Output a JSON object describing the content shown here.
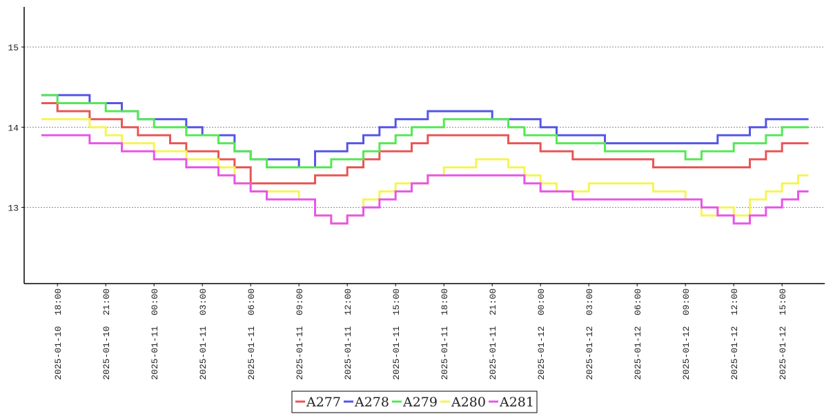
{
  "chart_data": {
    "type": "line",
    "step": true,
    "x": [
      "2025-01-10 17:00",
      "2025-01-10 18:00",
      "2025-01-10 19:00",
      "2025-01-10 20:00",
      "2025-01-10 21:00",
      "2025-01-10 22:00",
      "2025-01-10 23:00",
      "2025-01-11 00:00",
      "2025-01-11 01:00",
      "2025-01-11 02:00",
      "2025-01-11 03:00",
      "2025-01-11 04:00",
      "2025-01-11 05:00",
      "2025-01-11 06:00",
      "2025-01-11 07:00",
      "2025-01-11 08:00",
      "2025-01-11 09:00",
      "2025-01-11 10:00",
      "2025-01-11 11:00",
      "2025-01-11 12:00",
      "2025-01-11 13:00",
      "2025-01-11 14:00",
      "2025-01-11 15:00",
      "2025-01-11 16:00",
      "2025-01-11 17:00",
      "2025-01-11 18:00",
      "2025-01-11 19:00",
      "2025-01-11 20:00",
      "2025-01-11 21:00",
      "2025-01-11 22:00",
      "2025-01-11 23:00",
      "2025-01-12 00:00",
      "2025-01-12 01:00",
      "2025-01-12 02:00",
      "2025-01-12 03:00",
      "2025-01-12 04:00",
      "2025-01-12 05:00",
      "2025-01-12 06:00",
      "2025-01-12 07:00",
      "2025-01-12 08:00",
      "2025-01-12 09:00",
      "2025-01-12 10:00",
      "2025-01-12 11:00",
      "2025-01-12 12:00",
      "2025-01-12 13:00",
      "2025-01-12 14:00",
      "2025-01-12 15:00",
      "2025-01-12 16:00"
    ],
    "series": [
      {
        "name": "A277",
        "color": "#e85555",
        "values": [
          14.3,
          14.2,
          14.2,
          14.1,
          14.1,
          14.0,
          13.9,
          13.9,
          13.8,
          13.7,
          13.7,
          13.6,
          13.5,
          13.3,
          13.3,
          13.3,
          13.3,
          13.4,
          13.4,
          13.5,
          13.6,
          13.7,
          13.7,
          13.8,
          13.9,
          13.9,
          13.9,
          13.9,
          13.9,
          13.8,
          13.8,
          13.7,
          13.7,
          13.6,
          13.6,
          13.6,
          13.6,
          13.6,
          13.5,
          13.5,
          13.5,
          13.5,
          13.5,
          13.5,
          13.6,
          13.7,
          13.8,
          13.8
        ]
      },
      {
        "name": "A278",
        "color": "#5555e8",
        "values": [
          14.4,
          14.4,
          14.4,
          14.3,
          14.3,
          14.2,
          14.1,
          14.1,
          14.1,
          14.0,
          13.9,
          13.9,
          13.7,
          13.6,
          13.6,
          13.6,
          13.5,
          13.7,
          13.7,
          13.8,
          13.9,
          14.0,
          14.1,
          14.1,
          14.2,
          14.2,
          14.2,
          14.2,
          14.1,
          14.1,
          14.1,
          14.0,
          13.9,
          13.9,
          13.9,
          13.8,
          13.8,
          13.8,
          13.8,
          13.8,
          13.8,
          13.8,
          13.9,
          13.9,
          14.0,
          14.1,
          14.1,
          14.1
        ]
      },
      {
        "name": "A279",
        "color": "#55e855",
        "values": [
          14.4,
          14.3,
          14.3,
          14.3,
          14.2,
          14.2,
          14.1,
          14.0,
          14.0,
          13.9,
          13.9,
          13.8,
          13.7,
          13.6,
          13.5,
          13.5,
          13.5,
          13.5,
          13.6,
          13.6,
          13.7,
          13.8,
          13.9,
          14.0,
          14.0,
          14.1,
          14.1,
          14.1,
          14.1,
          14.0,
          13.9,
          13.9,
          13.8,
          13.8,
          13.8,
          13.7,
          13.7,
          13.7,
          13.7,
          13.7,
          13.6,
          13.7,
          13.7,
          13.8,
          13.8,
          13.9,
          14.0,
          14.0
        ]
      },
      {
        "name": "A280",
        "color": "#f5f555",
        "values": [
          14.1,
          14.1,
          14.1,
          14.0,
          13.9,
          13.8,
          13.8,
          13.7,
          13.7,
          13.6,
          13.6,
          13.5,
          13.3,
          13.2,
          13.2,
          13.2,
          13.1,
          12.9,
          12.8,
          12.9,
          13.1,
          13.2,
          13.3,
          13.3,
          13.4,
          13.5,
          13.5,
          13.6,
          13.6,
          13.5,
          13.4,
          13.3,
          13.2,
          13.2,
          13.3,
          13.3,
          13.3,
          13.3,
          13.2,
          13.2,
          13.1,
          12.9,
          13.0,
          12.9,
          13.1,
          13.2,
          13.3,
          13.4
        ]
      },
      {
        "name": "A281",
        "color": "#e855e8",
        "values": [
          13.9,
          13.9,
          13.9,
          13.8,
          13.8,
          13.7,
          13.7,
          13.6,
          13.6,
          13.5,
          13.5,
          13.4,
          13.3,
          13.2,
          13.1,
          13.1,
          13.1,
          12.9,
          12.8,
          12.9,
          13.0,
          13.1,
          13.2,
          13.3,
          13.4,
          13.4,
          13.4,
          13.4,
          13.4,
          13.4,
          13.3,
          13.2,
          13.2,
          13.1,
          13.1,
          13.1,
          13.1,
          13.1,
          13.1,
          13.1,
          13.1,
          13.0,
          12.9,
          12.8,
          12.9,
          13.0,
          13.1,
          13.2
        ]
      }
    ],
    "xlim": [
      "2025-01-10 15:56",
      "2025-01-12 17:39"
    ],
    "xticks": [
      {
        "value": "2025-01-10 18:00",
        "label": "2025-01-10  18:00"
      },
      {
        "value": "2025-01-10 21:00",
        "label": "2025-01-10  21:00"
      },
      {
        "value": "2025-01-11 00:00",
        "label": "2025-01-11  00:00"
      },
      {
        "value": "2025-01-11 03:00",
        "label": "2025-01-11  03:00"
      },
      {
        "value": "2025-01-11 06:00",
        "label": "2025-01-11  06:00"
      },
      {
        "value": "2025-01-11 09:00",
        "label": "2025-01-11  09:00"
      },
      {
        "value": "2025-01-11 12:00",
        "label": "2025-01-11  12:00"
      },
      {
        "value": "2025-01-11 15:00",
        "label": "2025-01-11  15:00"
      },
      {
        "value": "2025-01-11 18:00",
        "label": "2025-01-11  18:00"
      },
      {
        "value": "2025-01-11 21:00",
        "label": "2025-01-11  21:00"
      },
      {
        "value": "2025-01-12 00:00",
        "label": "2025-01-12  00:00"
      },
      {
        "value": "2025-01-12 03:00",
        "label": "2025-01-12  03:00"
      },
      {
        "value": "2025-01-12 06:00",
        "label": "2025-01-12  06:00"
      },
      {
        "value": "2025-01-12 09:00",
        "label": "2025-01-12  09:00"
      },
      {
        "value": "2025-01-12 12:00",
        "label": "2025-01-12  12:00"
      },
      {
        "value": "2025-01-12 15:00",
        "label": "2025-01-12  15:00"
      }
    ],
    "ylim": [
      12.05,
      15.5
    ],
    "yticks": [
      13,
      14,
      15
    ],
    "grid": true,
    "legend": "bottom"
  }
}
